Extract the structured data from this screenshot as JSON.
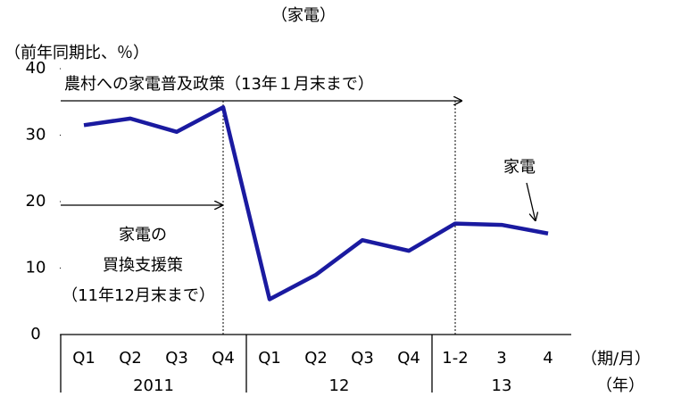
{
  "chart_data": {
    "type": "line",
    "title": "（家電）",
    "y_label": "（前年同期比、％）",
    "groups": [
      {
        "label": "2011",
        "categories": [
          "Q1",
          "Q2",
          "Q3",
          "Q4"
        ]
      },
      {
        "label": "12",
        "categories": [
          "Q1",
          "Q2",
          "Q3",
          "Q4"
        ]
      },
      {
        "label": "13",
        "categories": [
          "1-2",
          "3",
          "4"
        ]
      }
    ],
    "x_units": [
      "（期/月）",
      "（年）"
    ],
    "series": [
      {
        "name": "家電",
        "color": "#1a1aa0",
        "values": [
          31.5,
          32.5,
          30.5,
          34.2,
          5.3,
          9,
          14.2,
          12.6,
          16.7,
          16.5,
          15.2
        ]
      }
    ],
    "ylim": [
      0,
      40
    ],
    "yticks": [
      0,
      10,
      20,
      30,
      40
    ],
    "annotations": [
      "農村への家電普及政策（13年１月末まで）",
      "家電の",
      "買換支援策",
      "（11年12月末まで）"
    ]
  }
}
